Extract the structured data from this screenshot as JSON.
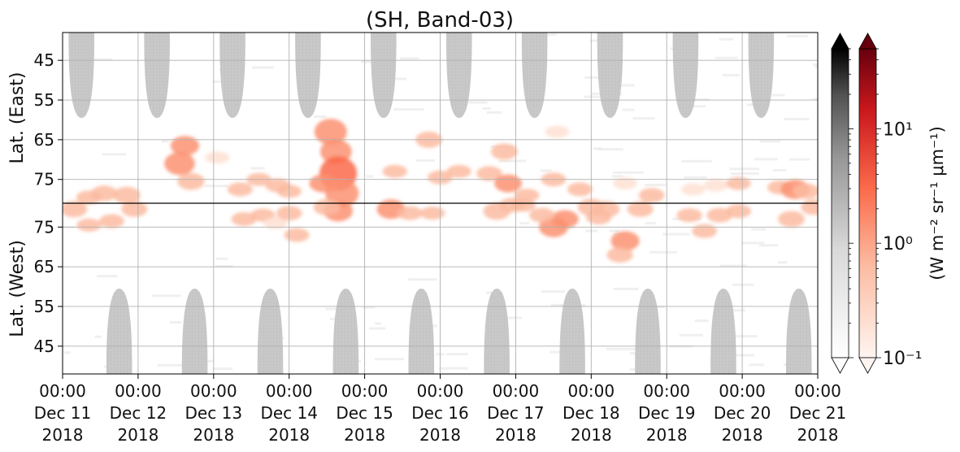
{
  "chart_data": {
    "type": "heatmap",
    "title": "(SH, Band-03)",
    "xlabel": "",
    "ylabel_top": "Lat. (East)",
    "ylabel_bottom": "Lat. (West)",
    "x_range_days": [
      0,
      10
    ],
    "x_ticks": [
      {
        "time": "00:00",
        "date": "Dec 11",
        "year": "2018"
      },
      {
        "time": "00:00",
        "date": "Dec 12",
        "year": "2018"
      },
      {
        "time": "00:00",
        "date": "Dec 13",
        "year": "2018"
      },
      {
        "time": "00:00",
        "date": "Dec 14",
        "year": "2018"
      },
      {
        "time": "00:00",
        "date": "Dec 15",
        "year": "2018"
      },
      {
        "time": "00:00",
        "date": "Dec 16",
        "year": "2018"
      },
      {
        "time": "00:00",
        "date": "Dec 17",
        "year": "2018"
      },
      {
        "time": "00:00",
        "date": "Dec 18",
        "year": "2018"
      },
      {
        "time": "00:00",
        "date": "Dec 19",
        "year": "2018"
      },
      {
        "time": "00:00",
        "date": "Dec 20",
        "year": "2018"
      },
      {
        "time": "00:00",
        "date": "Dec 21",
        "year": "2018"
      }
    ],
    "y_panels": {
      "east": {
        "label": "Lat. (East)",
        "range": [
          38,
          81
        ],
        "ticks": [
          "45",
          "55",
          "65",
          "75"
        ]
      },
      "west": {
        "label": "Lat. (West)",
        "range": [
          38,
          81
        ],
        "ticks": [
          "45",
          "55",
          "65",
          "75"
        ]
      }
    },
    "grid": true,
    "colorbar": {
      "label": "(W m⁻² sr⁻¹ μm⁻¹)",
      "scale": "log",
      "range": [
        0.1,
        50
      ],
      "ticks": [
        "10⁻¹",
        "10⁰",
        "10¹"
      ],
      "extend": "both",
      "colormaps": [
        "Greys",
        "Reds"
      ]
    },
    "daylight_lobes": {
      "fill": "#c8c8c8",
      "east_centers_days": [
        0.25,
        1.25,
        2.25,
        3.25,
        4.25,
        5.25,
        6.25,
        7.25,
        8.25,
        9.25
      ],
      "west_centers_days": [
        0.75,
        1.75,
        2.75,
        3.75,
        4.75,
        5.75,
        6.75,
        7.75,
        8.75,
        9.75
      ],
      "half_width_days": 0.17,
      "extent_lat": 59.5
    },
    "emission_blobs": [
      {
        "panel": "east",
        "day": 0.35,
        "lat": 79.5,
        "val": 0.5
      },
      {
        "panel": "east",
        "day": 0.55,
        "lat": 78.5,
        "val": 0.7
      },
      {
        "panel": "east",
        "day": 0.85,
        "lat": 79.0,
        "val": 0.9
      },
      {
        "panel": "west",
        "day": 0.15,
        "lat": 79.5,
        "val": 0.8
      },
      {
        "panel": "west",
        "day": 0.35,
        "lat": 75.5,
        "val": 0.4
      },
      {
        "panel": "west",
        "day": 0.65,
        "lat": 76.5,
        "val": 0.5
      },
      {
        "panel": "west",
        "day": 0.95,
        "lat": 79.5,
        "val": 0.7
      },
      {
        "panel": "east",
        "day": 1.55,
        "lat": 71.0,
        "val": 1.6
      },
      {
        "panel": "east",
        "day": 1.62,
        "lat": 66.5,
        "val": 1.2
      },
      {
        "panel": "east",
        "day": 1.7,
        "lat": 75.5,
        "val": 0.9
      },
      {
        "panel": "east",
        "day": 2.05,
        "lat": 69.5,
        "val": 0.3
      },
      {
        "panel": "east",
        "day": 2.35,
        "lat": 77.5,
        "val": 0.5
      },
      {
        "panel": "east",
        "day": 2.6,
        "lat": 75.0,
        "val": 0.4
      },
      {
        "panel": "east",
        "day": 2.85,
        "lat": 76.5,
        "val": 0.5
      },
      {
        "panel": "west",
        "day": 2.4,
        "lat": 77.0,
        "val": 0.5
      },
      {
        "panel": "west",
        "day": 2.65,
        "lat": 78.0,
        "val": 0.4
      },
      {
        "panel": "west",
        "day": 2.82,
        "lat": 76.0,
        "val": 0.3
      },
      {
        "panel": "west",
        "day": 3.1,
        "lat": 73.0,
        "val": 0.5
      },
      {
        "panel": "west",
        "day": 3.0,
        "lat": 78.5,
        "val": 0.6
      },
      {
        "panel": "east",
        "day": 3.0,
        "lat": 78.0,
        "val": 0.4
      },
      {
        "panel": "east",
        "day": 3.55,
        "lat": 63.0,
        "val": 2.0
      },
      {
        "panel": "east",
        "day": 3.62,
        "lat": 68.0,
        "val": 1.8
      },
      {
        "panel": "east",
        "day": 3.65,
        "lat": 73.5,
        "val": 3.0
      },
      {
        "panel": "east",
        "day": 3.7,
        "lat": 78.5,
        "val": 2.2
      },
      {
        "panel": "east",
        "day": 3.45,
        "lat": 76.0,
        "val": 1.0
      },
      {
        "panel": "west",
        "day": 3.65,
        "lat": 79.0,
        "val": 1.3
      },
      {
        "panel": "west",
        "day": 3.5,
        "lat": 80.0,
        "val": 0.8
      },
      {
        "panel": "west",
        "day": 4.35,
        "lat": 79.5,
        "val": 1.2
      },
      {
        "panel": "west",
        "day": 4.6,
        "lat": 78.5,
        "val": 0.5
      },
      {
        "panel": "east",
        "day": 4.4,
        "lat": 73.0,
        "val": 0.4
      },
      {
        "panel": "east",
        "day": 4.85,
        "lat": 65.0,
        "val": 0.8
      },
      {
        "panel": "east",
        "day": 5.0,
        "lat": 74.5,
        "val": 0.5
      },
      {
        "panel": "east",
        "day": 5.25,
        "lat": 73.0,
        "val": 0.4
      },
      {
        "panel": "west",
        "day": 4.9,
        "lat": 78.5,
        "val": 0.4
      },
      {
        "panel": "east",
        "day": 5.65,
        "lat": 73.5,
        "val": 0.6
      },
      {
        "panel": "east",
        "day": 5.85,
        "lat": 68.0,
        "val": 0.8
      },
      {
        "panel": "east",
        "day": 5.9,
        "lat": 76.0,
        "val": 1.0
      },
      {
        "panel": "west",
        "day": 5.75,
        "lat": 79.0,
        "val": 0.9
      },
      {
        "panel": "west",
        "day": 5.95,
        "lat": 80.5,
        "val": 0.6
      },
      {
        "panel": "east",
        "day": 6.15,
        "lat": 79.0,
        "val": 0.4
      },
      {
        "panel": "east",
        "day": 6.5,
        "lat": 75.0,
        "val": 0.5
      },
      {
        "panel": "east",
        "day": 6.55,
        "lat": 63.0,
        "val": 0.3
      },
      {
        "panel": "east",
        "day": 6.85,
        "lat": 77.5,
        "val": 0.5
      },
      {
        "panel": "west",
        "day": 6.5,
        "lat": 75.0,
        "val": 1.3
      },
      {
        "panel": "west",
        "day": 6.65,
        "lat": 77.0,
        "val": 1.0
      },
      {
        "panel": "west",
        "day": 6.35,
        "lat": 78.0,
        "val": 0.6
      },
      {
        "panel": "west",
        "day": 6.1,
        "lat": 80.5,
        "val": 0.4
      },
      {
        "panel": "west",
        "day": 7.0,
        "lat": 80.0,
        "val": 0.9
      },
      {
        "panel": "west",
        "day": 7.1,
        "lat": 77.5,
        "val": 0.6
      },
      {
        "panel": "west",
        "day": 7.45,
        "lat": 71.5,
        "val": 1.2
      },
      {
        "panel": "west",
        "day": 7.38,
        "lat": 68.0,
        "val": 0.7
      },
      {
        "panel": "west",
        "day": 7.65,
        "lat": 79.5,
        "val": 0.7
      },
      {
        "panel": "east",
        "day": 7.45,
        "lat": 76.0,
        "val": 0.3
      },
      {
        "panel": "east",
        "day": 7.8,
        "lat": 79.0,
        "val": 0.6
      },
      {
        "panel": "west",
        "day": 7.2,
        "lat": 79.5,
        "val": 0.8
      },
      {
        "panel": "east",
        "day": 8.35,
        "lat": 77.5,
        "val": 0.3
      },
      {
        "panel": "east",
        "day": 8.65,
        "lat": 76.5,
        "val": 0.3
      },
      {
        "panel": "west",
        "day": 8.3,
        "lat": 78.0,
        "val": 0.5
      },
      {
        "panel": "west",
        "day": 8.5,
        "lat": 74.0,
        "val": 0.5
      },
      {
        "panel": "west",
        "day": 8.7,
        "lat": 78.0,
        "val": 0.6
      },
      {
        "panel": "west",
        "day": 8.95,
        "lat": 79.0,
        "val": 0.5
      },
      {
        "panel": "east",
        "day": 8.95,
        "lat": 76.0,
        "val": 0.4
      },
      {
        "panel": "east",
        "day": 9.5,
        "lat": 77.0,
        "val": 0.5
      },
      {
        "panel": "east",
        "day": 9.7,
        "lat": 77.5,
        "val": 1.2
      },
      {
        "panel": "east",
        "day": 9.85,
        "lat": 78.0,
        "val": 0.7
      },
      {
        "panel": "west",
        "day": 9.65,
        "lat": 77.0,
        "val": 0.8
      },
      {
        "panel": "west",
        "day": 9.95,
        "lat": 80.0,
        "val": 0.7
      }
    ]
  }
}
